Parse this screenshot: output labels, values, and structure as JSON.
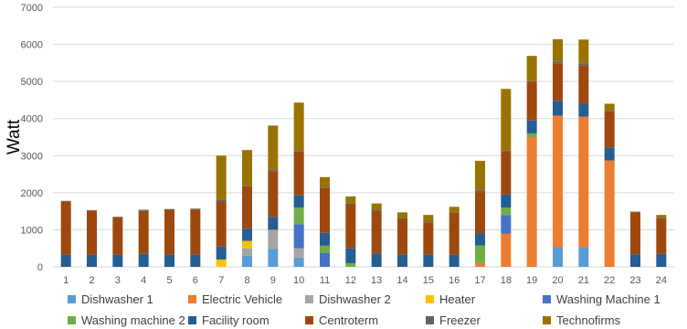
{
  "chart_data": {
    "type": "bar",
    "stacked": true,
    "ylabel": "Watt",
    "xlabel": "",
    "ylim": [
      0,
      7000
    ],
    "yticks": [
      0,
      1000,
      2000,
      3000,
      4000,
      5000,
      6000,
      7000
    ],
    "grid": true,
    "legend_position": "bottom",
    "categories": [
      "1",
      "2",
      "3",
      "4",
      "5",
      "6",
      "7",
      "8",
      "9",
      "10",
      "11",
      "12",
      "13",
      "14",
      "15",
      "16",
      "17",
      "18",
      "19",
      "20",
      "21",
      "22",
      "23",
      "24"
    ],
    "series": [
      {
        "name": "Dishwasher 1",
        "color": "#5b9bd5",
        "values": [
          0,
          0,
          0,
          0,
          0,
          0,
          0,
          300,
          480,
          250,
          0,
          0,
          0,
          0,
          0,
          0,
          0,
          0,
          0,
          530,
          530,
          0,
          0,
          0
        ]
      },
      {
        "name": "Electric Vehicle",
        "color": "#ed7d31",
        "values": [
          0,
          0,
          0,
          0,
          0,
          0,
          0,
          0,
          0,
          0,
          0,
          0,
          0,
          0,
          0,
          0,
          100,
          900,
          3500,
          3550,
          3520,
          2870,
          0,
          0
        ]
      },
      {
        "name": "Dishwasher 2",
        "color": "#a5a5a5",
        "values": [
          0,
          0,
          0,
          0,
          0,
          0,
          0,
          200,
          520,
          250,
          0,
          0,
          0,
          0,
          0,
          0,
          0,
          0,
          0,
          0,
          0,
          0,
          0,
          0
        ]
      },
      {
        "name": "Heater",
        "color": "#ffc000",
        "values": [
          0,
          0,
          0,
          0,
          0,
          0,
          200,
          200,
          0,
          0,
          0,
          0,
          0,
          0,
          0,
          0,
          0,
          0,
          0,
          0,
          0,
          0,
          0,
          0
        ]
      },
      {
        "name": "Washing Machine 1",
        "color": "#4472c4",
        "values": [
          0,
          0,
          0,
          0,
          0,
          0,
          0,
          0,
          0,
          650,
          370,
          0,
          0,
          0,
          0,
          0,
          0,
          500,
          0,
          0,
          0,
          0,
          0,
          0
        ]
      },
      {
        "name": "Washing machine 2",
        "color": "#70ad47",
        "values": [
          0,
          0,
          0,
          0,
          0,
          0,
          0,
          0,
          0,
          450,
          200,
          100,
          0,
          0,
          0,
          0,
          480,
          200,
          100,
          0,
          0,
          0,
          0,
          0
        ]
      },
      {
        "name": "Facility room",
        "color": "#255e91",
        "values": [
          330,
          330,
          330,
          350,
          330,
          330,
          350,
          330,
          350,
          330,
          350,
          400,
          360,
          340,
          330,
          330,
          330,
          350,
          350,
          400,
          350,
          350,
          340,
          350
        ]
      },
      {
        "name": "Centroterm",
        "color": "#9e480e",
        "values": [
          1430,
          1180,
          1000,
          1170,
          1210,
          1220,
          1200,
          1140,
          1230,
          1180,
          1200,
          1200,
          1160,
          970,
          870,
          1130,
          1100,
          1170,
          1040,
          1010,
          1040,
          970,
          1130,
          960
        ]
      },
      {
        "name": "Freezer",
        "color": "#636363",
        "values": [
          20,
          20,
          20,
          20,
          20,
          20,
          50,
          20,
          50,
          20,
          20,
          20,
          20,
          20,
          20,
          20,
          50,
          20,
          20,
          50,
          50,
          20,
          20,
          20
        ]
      },
      {
        "name": "Technofirms",
        "color": "#997300",
        "values": [
          0,
          0,
          0,
          0,
          0,
          0,
          1200,
          960,
          1180,
          1300,
          280,
          180,
          170,
          140,
          180,
          140,
          800,
          1660,
          680,
          600,
          640,
          190,
          0,
          70
        ]
      }
    ]
  }
}
